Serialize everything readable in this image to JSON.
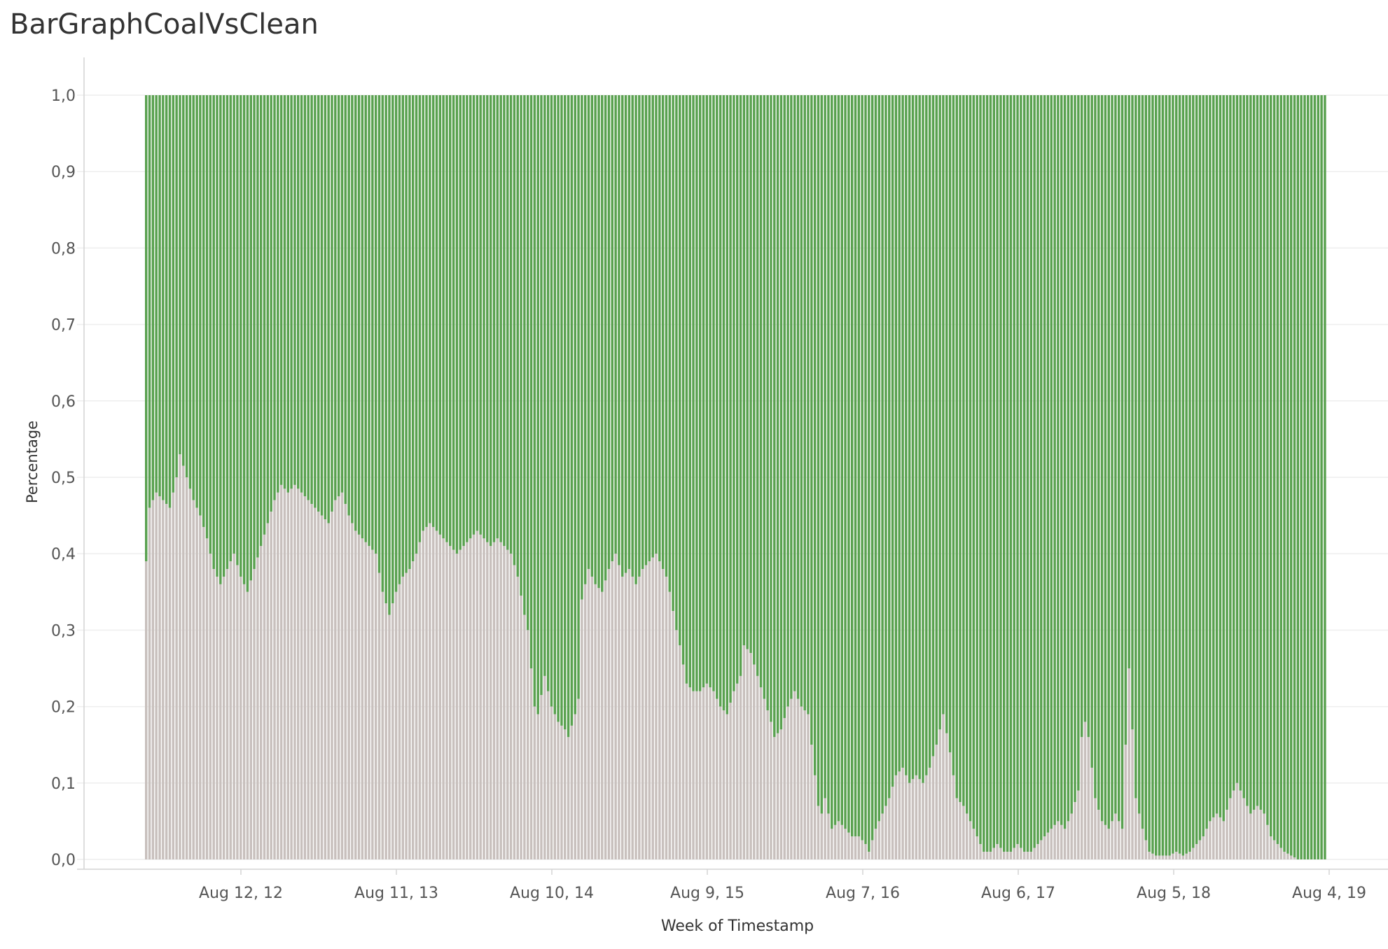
{
  "chart_data": {
    "type": "bar",
    "stacked": true,
    "title": "BarGraphCoalVsClean",
    "xlabel": "Week of Timestamp",
    "ylabel": "Percentage",
    "ylim": [
      0,
      1
    ],
    "yticks": [
      "0,0",
      "0,1",
      "0,2",
      "0,3",
      "0,4",
      "0,5",
      "0,6",
      "0,7",
      "0,8",
      "0,9",
      "1,0"
    ],
    "xticks": [
      "Aug 12, 12",
      "Aug 11, 13",
      "Aug 10, 14",
      "Aug 9, 15",
      "Aug 7, 16",
      "Aug 6, 17",
      "Aug 5, 18",
      "Aug 4, 19"
    ],
    "grid": true,
    "colors": {
      "coal": "#c8c0bd",
      "clean": "#59a14f",
      "grid": "#eeeeee",
      "axis": "#d4d4d4",
      "text": "#555555"
    },
    "series_colors": [
      "#c8c0bd",
      "#59a14f"
    ],
    "coal_anchors": [
      [
        0,
        0.39
      ],
      [
        1,
        0.46
      ],
      [
        3,
        0.48
      ],
      [
        5,
        0.47
      ],
      [
        7,
        0.46
      ],
      [
        9,
        0.5
      ],
      [
        10,
        0.53
      ],
      [
        12,
        0.5
      ],
      [
        14,
        0.47
      ],
      [
        16,
        0.45
      ],
      [
        18,
        0.42
      ],
      [
        20,
        0.38
      ],
      [
        22,
        0.36
      ],
      [
        24,
        0.38
      ],
      [
        26,
        0.4
      ],
      [
        28,
        0.37
      ],
      [
        30,
        0.35
      ],
      [
        32,
        0.38
      ],
      [
        34,
        0.41
      ],
      [
        36,
        0.44
      ],
      [
        38,
        0.47
      ],
      [
        40,
        0.49
      ],
      [
        42,
        0.48
      ],
      [
        44,
        0.49
      ],
      [
        46,
        0.48
      ],
      [
        48,
        0.47
      ],
      [
        50,
        0.46
      ],
      [
        52,
        0.45
      ],
      [
        54,
        0.44
      ],
      [
        56,
        0.47
      ],
      [
        58,
        0.48
      ],
      [
        60,
        0.45
      ],
      [
        62,
        0.43
      ],
      [
        64,
        0.42
      ],
      [
        66,
        0.41
      ],
      [
        68,
        0.4
      ],
      [
        70,
        0.35
      ],
      [
        72,
        0.32
      ],
      [
        74,
        0.35
      ],
      [
        76,
        0.37
      ],
      [
        78,
        0.38
      ],
      [
        80,
        0.4
      ],
      [
        82,
        0.43
      ],
      [
        84,
        0.44
      ],
      [
        86,
        0.43
      ],
      [
        88,
        0.42
      ],
      [
        90,
        0.41
      ],
      [
        92,
        0.4
      ],
      [
        94,
        0.41
      ],
      [
        96,
        0.42
      ],
      [
        98,
        0.43
      ],
      [
        100,
        0.42
      ],
      [
        102,
        0.41
      ],
      [
        104,
        0.42
      ],
      [
        106,
        0.41
      ],
      [
        108,
        0.4
      ],
      [
        110,
        0.37
      ],
      [
        112,
        0.32
      ],
      [
        113,
        0.3
      ],
      [
        115,
        0.2
      ],
      [
        116,
        0.19
      ],
      [
        118,
        0.24
      ],
      [
        120,
        0.2
      ],
      [
        122,
        0.18
      ],
      [
        124,
        0.17
      ],
      [
        125,
        0.16
      ],
      [
        127,
        0.19
      ],
      [
        128,
        0.21
      ],
      [
        129,
        0.34
      ],
      [
        131,
        0.38
      ],
      [
        133,
        0.36
      ],
      [
        135,
        0.35
      ],
      [
        137,
        0.38
      ],
      [
        139,
        0.4
      ],
      [
        141,
        0.37
      ],
      [
        143,
        0.38
      ],
      [
        145,
        0.36
      ],
      [
        147,
        0.38
      ],
      [
        149,
        0.39
      ],
      [
        151,
        0.4
      ],
      [
        153,
        0.38
      ],
      [
        154,
        0.37
      ],
      [
        155,
        0.35
      ],
      [
        157,
        0.3
      ],
      [
        158,
        0.28
      ],
      [
        160,
        0.23
      ],
      [
        162,
        0.22
      ],
      [
        164,
        0.22
      ],
      [
        166,
        0.23
      ],
      [
        168,
        0.22
      ],
      [
        170,
        0.2
      ],
      [
        172,
        0.19
      ],
      [
        174,
        0.22
      ],
      [
        176,
        0.24
      ],
      [
        177,
        0.28
      ],
      [
        179,
        0.27
      ],
      [
        181,
        0.24
      ],
      [
        183,
        0.21
      ],
      [
        185,
        0.18
      ],
      [
        186,
        0.16
      ],
      [
        188,
        0.17
      ],
      [
        190,
        0.2
      ],
      [
        192,
        0.22
      ],
      [
        194,
        0.2
      ],
      [
        196,
        0.19
      ],
      [
        198,
        0.11
      ],
      [
        199,
        0.07
      ],
      [
        200,
        0.06
      ],
      [
        201,
        0.08
      ],
      [
        203,
        0.04
      ],
      [
        205,
        0.05
      ],
      [
        207,
        0.04
      ],
      [
        209,
        0.03
      ],
      [
        211,
        0.03
      ],
      [
        213,
        0.02
      ],
      [
        214,
        0.01
      ],
      [
        216,
        0.04
      ],
      [
        218,
        0.06
      ],
      [
        220,
        0.08
      ],
      [
        222,
        0.11
      ],
      [
        224,
        0.12
      ],
      [
        226,
        0.1
      ],
      [
        228,
        0.11
      ],
      [
        230,
        0.1
      ],
      [
        232,
        0.12
      ],
      [
        234,
        0.15
      ],
      [
        236,
        0.19
      ],
      [
        238,
        0.14
      ],
      [
        240,
        0.08
      ],
      [
        242,
        0.07
      ],
      [
        244,
        0.05
      ],
      [
        246,
        0.03
      ],
      [
        248,
        0.01
      ],
      [
        250,
        0.01
      ],
      [
        252,
        0.02
      ],
      [
        254,
        0.01
      ],
      [
        256,
        0.01
      ],
      [
        258,
        0.02
      ],
      [
        260,
        0.01
      ],
      [
        262,
        0.01
      ],
      [
        264,
        0.02
      ],
      [
        266,
        0.03
      ],
      [
        268,
        0.04
      ],
      [
        270,
        0.05
      ],
      [
        272,
        0.04
      ],
      [
        274,
        0.06
      ],
      [
        276,
        0.09
      ],
      [
        277,
        0.16
      ],
      [
        278,
        0.18
      ],
      [
        279,
        0.16
      ],
      [
        281,
        0.08
      ],
      [
        283,
        0.05
      ],
      [
        285,
        0.04
      ],
      [
        287,
        0.06
      ],
      [
        289,
        0.04
      ],
      [
        290,
        0.15
      ],
      [
        291,
        0.25
      ],
      [
        292,
        0.17
      ],
      [
        293,
        0.08
      ],
      [
        295,
        0.04
      ],
      [
        297,
        0.01
      ],
      [
        299,
        0.005
      ],
      [
        301,
        0.005
      ],
      [
        303,
        0.005
      ],
      [
        305,
        0.01
      ],
      [
        307,
        0.005
      ],
      [
        309,
        0.01
      ],
      [
        311,
        0.02
      ],
      [
        313,
        0.03
      ],
      [
        315,
        0.05
      ],
      [
        317,
        0.06
      ],
      [
        319,
        0.05
      ],
      [
        321,
        0.08
      ],
      [
        323,
        0.1
      ],
      [
        325,
        0.08
      ],
      [
        327,
        0.06
      ],
      [
        329,
        0.07
      ],
      [
        331,
        0.06
      ],
      [
        333,
        0.03
      ],
      [
        335,
        0.02
      ],
      [
        337,
        0.01
      ],
      [
        339,
        0.005
      ],
      [
        341,
        0.0
      ],
      [
        349,
        0.0
      ]
    ]
  }
}
